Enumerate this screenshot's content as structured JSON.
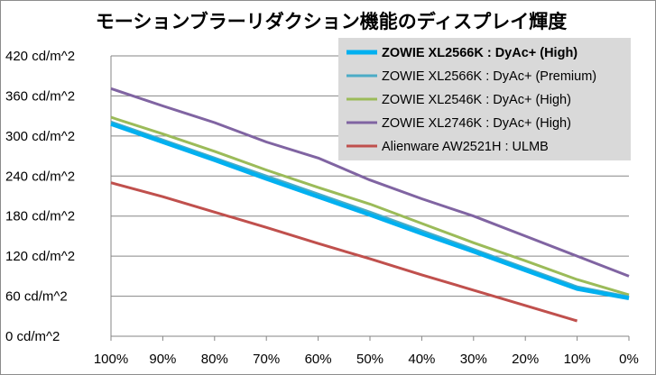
{
  "chart_data": {
    "type": "line",
    "title": "モーションブラーリダクション機能のディスプレイ輝度",
    "xlabel": "",
    "ylabel": "",
    "categories": [
      "100%",
      "90%",
      "80%",
      "70%",
      "60%",
      "50%",
      "40%",
      "30%",
      "20%",
      "10%",
      "0%"
    ],
    "y_tick_labels": [
      "0 cd/m^2",
      "60 cd/m^2",
      "120 cd/m^2",
      "180 cd/m^2",
      "240 cd/m^2",
      "300 cd/m^2",
      "360 cd/m^2",
      "420 cd/m^2"
    ],
    "ylim": [
      0,
      420
    ],
    "y_step": 60,
    "grid": "horizontal",
    "legend_position": "top-right",
    "series": [
      {
        "name": "ZOWIE XL2566K : DyAc+ (High)",
        "color": "#00b0f0",
        "bold": true,
        "values": [
          318,
          291,
          264,
          236,
          209,
          182,
          154,
          127,
          99,
          71,
          57
        ]
      },
      {
        "name": "ZOWIE XL2566K : DyAc+ (Premium)",
        "color": "#4bacc6",
        "bold": false,
        "values": [
          321,
          294,
          267,
          240,
          213,
          186,
          158,
          130,
          102,
          74,
          59
        ]
      },
      {
        "name": "ZOWIE XL2546K : DyAc+ (High)",
        "color": "#9bbb59",
        "bold": false,
        "values": [
          328,
          303,
          277,
          249,
          223,
          198,
          169,
          140,
          113,
          85,
          62
        ]
      },
      {
        "name": "ZOWIE XL2746K : DyAc+ (High)",
        "color": "#8064a2",
        "bold": false,
        "values": [
          371,
          345,
          320,
          291,
          267,
          234,
          206,
          180,
          150,
          120,
          90
        ]
      },
      {
        "name": "Alienware AW2521H : ULMB",
        "color": "#c0504d",
        "bold": false,
        "values": [
          230,
          209,
          186,
          163,
          139,
          116,
          92,
          69,
          46,
          23,
          null
        ]
      }
    ]
  }
}
